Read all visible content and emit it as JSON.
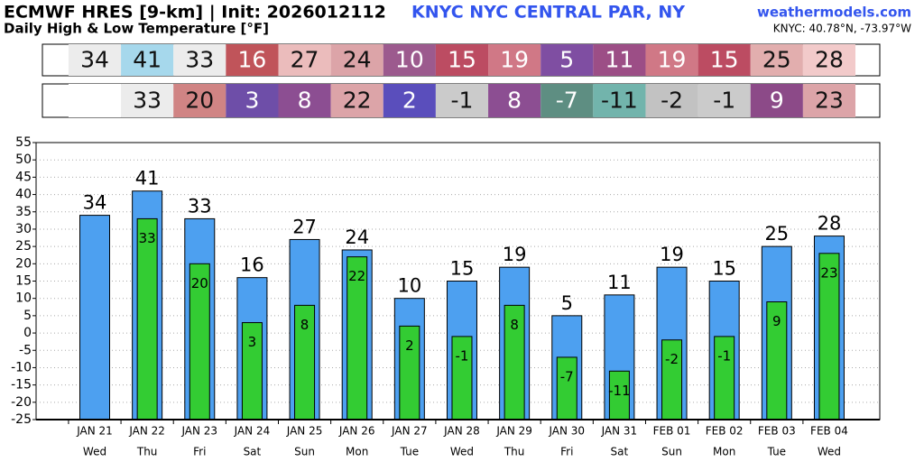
{
  "chart_data": {
    "type": "bar",
    "title": "ECMWF HRES [9-km] | Init: 2026012112",
    "station": "KNYC NYC CENTRAL PAR, NY",
    "source": "weathermodels.com",
    "subtitle": "Daily High & Low Temperature [°F]",
    "location": "KNYC: 40.78°N, -73.97°W",
    "categories": [
      "JAN 21",
      "JAN 22",
      "JAN 23",
      "JAN 24",
      "JAN 25",
      "JAN 26",
      "JAN 27",
      "JAN 28",
      "JAN 29",
      "JAN 30",
      "JAN 31",
      "FEB 01",
      "FEB 02",
      "FEB 03",
      "FEB 04"
    ],
    "weekdays": [
      "Wed",
      "Thu",
      "Fri",
      "Sat",
      "Sun",
      "Mon",
      "Tue",
      "Wed",
      "Thu",
      "Fri",
      "Sat",
      "Sun",
      "Mon",
      "Tue",
      "Wed"
    ],
    "series": [
      {
        "name": "High",
        "color": "#4da0f0",
        "values": [
          34,
          41,
          33,
          16,
          27,
          24,
          10,
          15,
          19,
          5,
          11,
          19,
          15,
          25,
          28
        ],
        "cell_colors": [
          "#ececec",
          "#a6d8ec",
          "#ececec",
          "#c0545a",
          "#ebbcbc",
          "#dca4a8",
          "#9c5a8e",
          "#bc4c62",
          "#d07886",
          "#7f4ea2",
          "#9c4e86",
          "#d07886",
          "#bc4c62",
          "#e2aeae",
          "#f2caca"
        ]
      },
      {
        "name": "Low",
        "color": "#33cc33",
        "values": [
          null,
          33,
          20,
          3,
          8,
          22,
          2,
          -1,
          8,
          -7,
          -11,
          -2,
          -1,
          9,
          23
        ],
        "cell_colors": [
          "#ffffff",
          "#ececec",
          "#d08484",
          "#6e4ea8",
          "#8c4e92",
          "#dca4a8",
          "#5a4ebc",
          "#cbcbcb",
          "#8c4e92",
          "#5e8e82",
          "#72b4ac",
          "#c2c2c2",
          "#cbcbcb",
          "#8c4a88",
          "#dca4a8"
        ]
      }
    ],
    "ylim": [
      -25,
      55
    ],
    "yticks": [
      -25,
      -20,
      -15,
      -10,
      -5,
      0,
      5,
      10,
      15,
      20,
      25,
      30,
      35,
      40,
      45,
      50,
      55
    ],
    "grid": true
  }
}
